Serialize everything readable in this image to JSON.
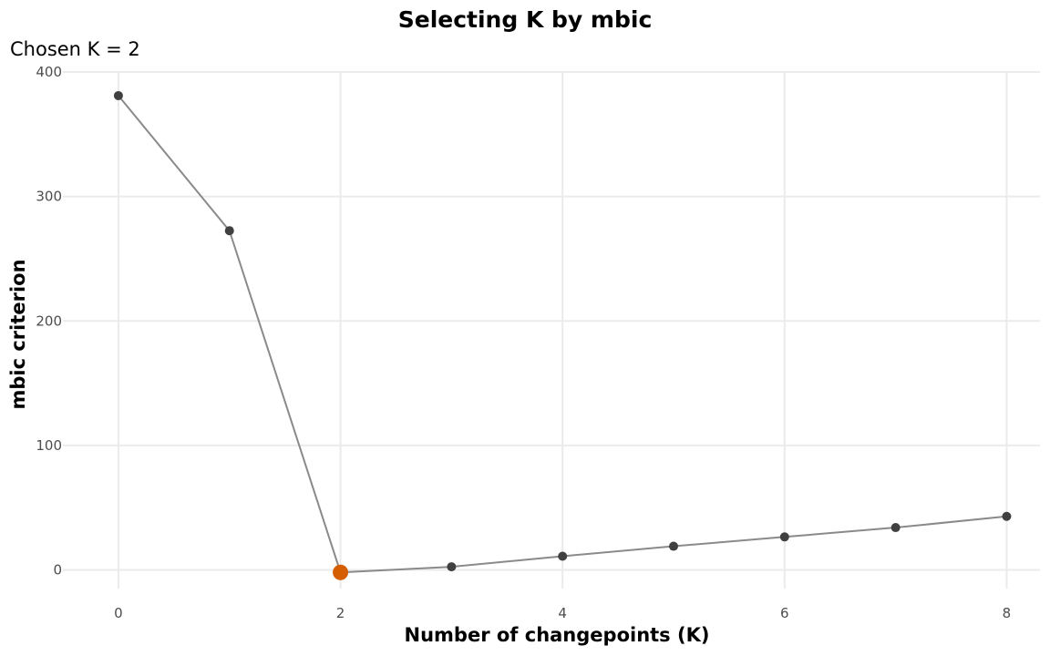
{
  "chart_data": {
    "type": "line",
    "title": "Selecting K by mbic",
    "subtitle": "Chosen K = 2",
    "xlabel": "Number of changepoints (K)",
    "ylabel": "mbic criterion",
    "x": [
      0,
      1,
      2,
      3,
      4,
      5,
      6,
      7,
      8
    ],
    "series": [
      {
        "values": [
          381,
          272.5,
          -2,
          2.5,
          11,
          19,
          26.5,
          34,
          43
        ]
      }
    ],
    "highlight": {
      "x": 2,
      "y": -2,
      "color": "#d55e00"
    },
    "xlim": [
      -0.5,
      8.3
    ],
    "ylim": [
      -15,
      400
    ],
    "x_ticks": [
      0,
      2,
      4,
      6,
      8
    ],
    "y_ticks": [
      0,
      100,
      200,
      300,
      400
    ],
    "x_tick_labels": [
      "0",
      "2",
      "4",
      "6",
      "8"
    ],
    "y_tick_labels": [
      "0",
      "100",
      "200",
      "300",
      "400"
    ],
    "grid": true,
    "legend": "none",
    "colors": {
      "line": "#8a8a8a",
      "point": "#404040",
      "highlight": "#d55e00",
      "grid": "#ebebeb"
    }
  }
}
